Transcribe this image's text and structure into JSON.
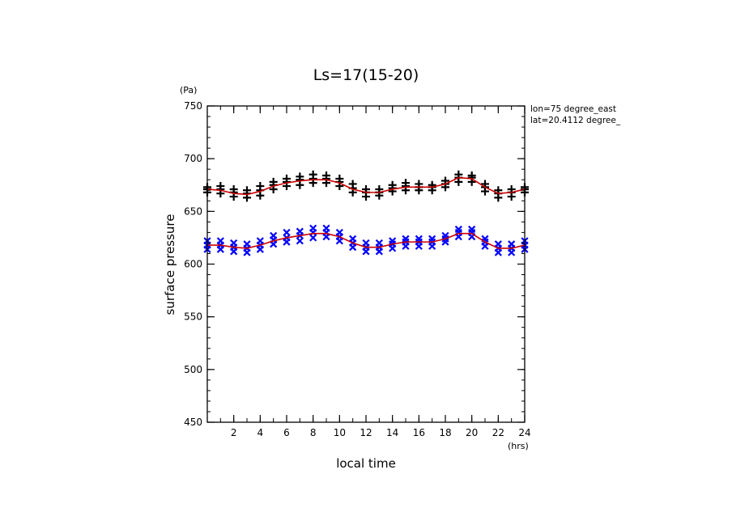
{
  "chart_data": {
    "type": "scatter",
    "title": "Ls=17(15-20)",
    "xlabel": "local time",
    "ylabel": "surface pressure",
    "x_unit": "(hrs)",
    "y_unit": "(Pa)",
    "xlim": [
      0,
      24
    ],
    "ylim": [
      450,
      750
    ],
    "x_ticks": [
      2,
      4,
      6,
      8,
      10,
      12,
      14,
      16,
      18,
      20,
      22,
      24
    ],
    "y_ticks": [
      450,
      500,
      550,
      600,
      650,
      700,
      750
    ],
    "x_minor_step": 1,
    "y_minor_step": 10,
    "annotations": [
      "lon=75 degree_east",
      "lat=20.4112 degree_"
    ],
    "x": [
      0,
      1,
      2,
      3,
      4,
      5,
      6,
      7,
      8,
      9,
      10,
      11,
      12,
      13,
      14,
      15,
      16,
      17,
      18,
      19,
      20,
      21,
      22,
      23,
      24
    ],
    "series": [
      {
        "marker": "plus",
        "color": "#000000",
        "points": [
          [
            0,
            671
          ],
          [
            0,
            668
          ],
          [
            0,
            673
          ],
          [
            1,
            671
          ],
          [
            1,
            667
          ],
          [
            1,
            674
          ],
          [
            2,
            668
          ],
          [
            2,
            664
          ],
          [
            2,
            671
          ],
          [
            3,
            667
          ],
          [
            3,
            663
          ],
          [
            3,
            670
          ],
          [
            4,
            670
          ],
          [
            4,
            665
          ],
          [
            4,
            674
          ],
          [
            5,
            675
          ],
          [
            5,
            671
          ],
          [
            5,
            678
          ],
          [
            6,
            678
          ],
          [
            6,
            674
          ],
          [
            6,
            681
          ],
          [
            7,
            680
          ],
          [
            7,
            675
          ],
          [
            7,
            683
          ],
          [
            8,
            681
          ],
          [
            8,
            677
          ],
          [
            8,
            685
          ],
          [
            9,
            681
          ],
          [
            9,
            677
          ],
          [
            9,
            684
          ],
          [
            10,
            678
          ],
          [
            10,
            674
          ],
          [
            10,
            681
          ],
          [
            11,
            672
          ],
          [
            11,
            668
          ],
          [
            11,
            676
          ],
          [
            12,
            668
          ],
          [
            12,
            664
          ],
          [
            12,
            671
          ],
          [
            13,
            668
          ],
          [
            13,
            665
          ],
          [
            13,
            671
          ],
          [
            14,
            672
          ],
          [
            14,
            669
          ],
          [
            14,
            675
          ],
          [
            15,
            674
          ],
          [
            15,
            670
          ],
          [
            15,
            677
          ],
          [
            16,
            673
          ],
          [
            16,
            670
          ],
          [
            16,
            676
          ],
          [
            17,
            673
          ],
          [
            17,
            670
          ],
          [
            17,
            675
          ],
          [
            18,
            676
          ],
          [
            18,
            673
          ],
          [
            18,
            679
          ],
          [
            19,
            682
          ],
          [
            19,
            678
          ],
          [
            19,
            685
          ],
          [
            20,
            682
          ],
          [
            20,
            678
          ],
          [
            20,
            684
          ],
          [
            21,
            673
          ],
          [
            21,
            669
          ],
          [
            21,
            676
          ],
          [
            22,
            667
          ],
          [
            22,
            663
          ],
          [
            22,
            670
          ],
          [
            23,
            668
          ],
          [
            23,
            664
          ],
          [
            23,
            671
          ],
          [
            24,
            671
          ],
          [
            24,
            668
          ],
          [
            24,
            673
          ]
        ]
      },
      {
        "marker": "cross",
        "color": "#0000ff",
        "points": [
          [
            0,
            618
          ],
          [
            0,
            614
          ],
          [
            0,
            622
          ],
          [
            1,
            618
          ],
          [
            1,
            614
          ],
          [
            1,
            622
          ],
          [
            2,
            616
          ],
          [
            2,
            612
          ],
          [
            2,
            620
          ],
          [
            3,
            615
          ],
          [
            3,
            611
          ],
          [
            3,
            619
          ],
          [
            4,
            618
          ],
          [
            4,
            614
          ],
          [
            4,
            622
          ],
          [
            5,
            623
          ],
          [
            5,
            619
          ],
          [
            5,
            627
          ],
          [
            6,
            625
          ],
          [
            6,
            621
          ],
          [
            6,
            630
          ],
          [
            7,
            627
          ],
          [
            7,
            622
          ],
          [
            7,
            631
          ],
          [
            8,
            630
          ],
          [
            8,
            625
          ],
          [
            8,
            634
          ],
          [
            9,
            630
          ],
          [
            9,
            626
          ],
          [
            9,
            634
          ],
          [
            10,
            626
          ],
          [
            10,
            622
          ],
          [
            10,
            630
          ],
          [
            11,
            620
          ],
          [
            11,
            616
          ],
          [
            11,
            624
          ],
          [
            12,
            616
          ],
          [
            12,
            612
          ],
          [
            12,
            620
          ],
          [
            13,
            616
          ],
          [
            13,
            612
          ],
          [
            13,
            620
          ],
          [
            14,
            619
          ],
          [
            14,
            615
          ],
          [
            14,
            622
          ],
          [
            15,
            621
          ],
          [
            15,
            617
          ],
          [
            15,
            624
          ],
          [
            16,
            621
          ],
          [
            16,
            617
          ],
          [
            16,
            624
          ],
          [
            17,
            621
          ],
          [
            17,
            617
          ],
          [
            17,
            624
          ],
          [
            18,
            624
          ],
          [
            18,
            621
          ],
          [
            18,
            627
          ],
          [
            19,
            630
          ],
          [
            19,
            626
          ],
          [
            19,
            633
          ],
          [
            20,
            630
          ],
          [
            20,
            626
          ],
          [
            20,
            633
          ],
          [
            21,
            621
          ],
          [
            21,
            617
          ],
          [
            21,
            624
          ],
          [
            22,
            615
          ],
          [
            22,
            611
          ],
          [
            22,
            619
          ],
          [
            23,
            615
          ],
          [
            23,
            611
          ],
          [
            23,
            619
          ],
          [
            24,
            618
          ],
          [
            24,
            614
          ],
          [
            24,
            622
          ]
        ]
      },
      {
        "line": true,
        "color": "#cc0000",
        "values": [
          671,
          670,
          667,
          666,
          669,
          674,
          677,
          679,
          680,
          680,
          677,
          671,
          668,
          668,
          671,
          673,
          673,
          673,
          676,
          682,
          681,
          673,
          667,
          668,
          671
        ]
      },
      {
        "line": true,
        "color": "#cc0000",
        "values": [
          618,
          618,
          616,
          615,
          618,
          622,
          625,
          627,
          629,
          629,
          626,
          620,
          616,
          616,
          619,
          621,
          621,
          621,
          624,
          629,
          629,
          621,
          615,
          615,
          618
        ]
      }
    ]
  }
}
